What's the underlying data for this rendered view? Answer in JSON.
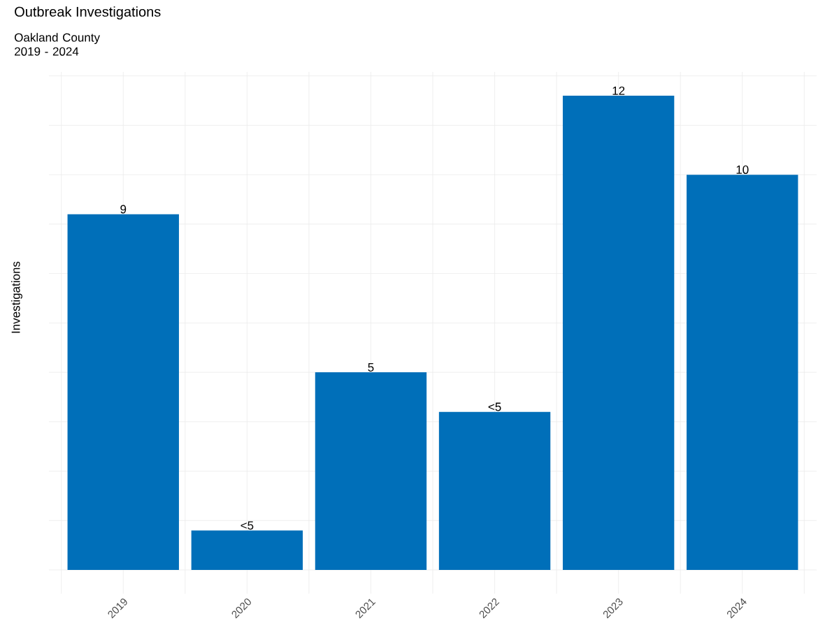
{
  "chart_data": {
    "type": "bar",
    "title": "Outbreak Investigations",
    "subtitle": "Oakland County 2019 - 2024",
    "ylabel": "Investigations",
    "categories": [
      "2019",
      "2020",
      "2021",
      "2022",
      "2023",
      "2024"
    ],
    "values": [
      9,
      1,
      5,
      4,
      12,
      10
    ],
    "value_labels": [
      "9",
      "<5",
      "5",
      "<5",
      "12",
      "10"
    ],
    "color": "#006fb9",
    "ylim": [
      -0.6,
      12.6
    ],
    "yticks": [
      {
        "value": 0,
        "label": null
      },
      {
        "value": 1.25,
        "label": null
      },
      {
        "value": 2.5,
        "label": null
      },
      {
        "value": 3.75,
        "label": null
      },
      {
        "value": 5,
        "label": null
      },
      {
        "value": 6.25,
        "label": null
      },
      {
        "value": 7.5,
        "label": null
      },
      {
        "value": 8.75,
        "label": null
      },
      {
        "value": 10,
        "label": null
      },
      {
        "value": 11.25,
        "label": null
      },
      {
        "value": 12.5,
        "label": null
      }
    ],
    "tick_labels": "x",
    "grid": true
  }
}
